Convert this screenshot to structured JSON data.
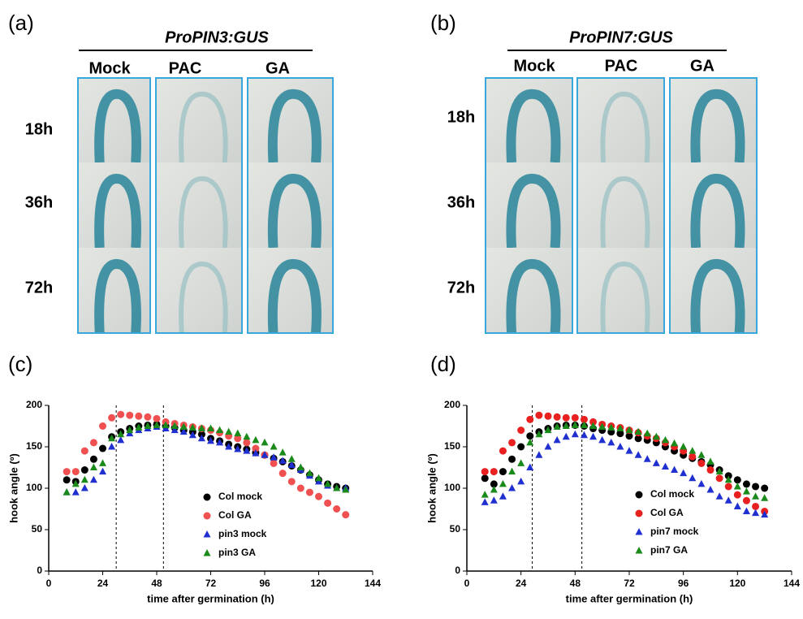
{
  "image_panels": [
    {
      "panel_label": "(a)",
      "title": "ProPIN3:GUS",
      "columns": [
        "Mock",
        "PAC",
        "GA"
      ],
      "rows": [
        "18h",
        "36h",
        "72h"
      ]
    },
    {
      "panel_label": "(b)",
      "title": "ProPIN7:GUS",
      "columns": [
        "Mock",
        "PAC",
        "GA"
      ],
      "rows": [
        "18h",
        "36h",
        "72h"
      ]
    }
  ],
  "chart_data": [
    {
      "type": "scatter",
      "panel_label": "(c)",
      "xlabel": "time after germination (h)",
      "ylabel": "hook angle (º)",
      "xlim": [
        0,
        144
      ],
      "ylim": [
        0,
        200
      ],
      "xticks": [
        0,
        24,
        48,
        72,
        96,
        120,
        144
      ],
      "yticks": [
        0,
        50,
        100,
        150,
        200
      ],
      "vlines": [
        30,
        51
      ],
      "x": [
        8,
        12,
        16,
        20,
        24,
        28,
        32,
        36,
        40,
        44,
        48,
        52,
        56,
        60,
        64,
        68,
        72,
        76,
        80,
        84,
        88,
        92,
        96,
        100,
        104,
        108,
        112,
        116,
        120,
        124,
        128,
        132
      ],
      "series": [
        {
          "name": "Col mock",
          "color": "#000000",
          "marker": "circle",
          "values": [
            110,
            108,
            122,
            135,
            148,
            162,
            168,
            172,
            175,
            176,
            177,
            175,
            173,
            170,
            168,
            165,
            160,
            157,
            153,
            150,
            147,
            143,
            140,
            136,
            132,
            127,
            122,
            116,
            110,
            105,
            102,
            100
          ]
        },
        {
          "name": "Col GA",
          "color": "#f05050",
          "marker": "circle",
          "values": [
            120,
            120,
            145,
            155,
            175,
            185,
            189,
            188,
            187,
            186,
            184,
            180,
            178,
            176,
            174,
            172,
            170,
            167,
            163,
            160,
            155,
            148,
            140,
            130,
            118,
            108,
            100,
            95,
            90,
            82,
            75,
            68
          ]
        },
        {
          "name": "pin3 mock",
          "color": "#2030d0",
          "marker": "triangle",
          "values": [
            95,
            95,
            100,
            110,
            120,
            150,
            158,
            166,
            170,
            172,
            174,
            172,
            170,
            168,
            164,
            160,
            157,
            155,
            150,
            147,
            145,
            142,
            140,
            137,
            133,
            128,
            122,
            115,
            108,
            103,
            100,
            100
          ]
        },
        {
          "name": "pin3 GA",
          "color": "#1a8a1a",
          "marker": "triangle",
          "values": [
            95,
            105,
            110,
            125,
            130,
            160,
            165,
            170,
            173,
            175,
            176,
            176,
            175,
            174,
            173,
            172,
            172,
            170,
            168,
            166,
            162,
            158,
            155,
            150,
            143,
            135,
            125,
            118,
            112,
            105,
            100,
            98
          ]
        }
      ]
    },
    {
      "type": "scatter",
      "panel_label": "(d)",
      "xlabel": "time after germination (h)",
      "ylabel": "hook angle (º)",
      "xlim": [
        0,
        144
      ],
      "ylim": [
        0,
        200
      ],
      "xticks": [
        0,
        24,
        48,
        72,
        96,
        120,
        144
      ],
      "yticks": [
        0,
        50,
        100,
        150,
        200
      ],
      "vlines": [
        29,
        51
      ],
      "x": [
        8,
        12,
        16,
        20,
        24,
        28,
        32,
        36,
        40,
        44,
        48,
        52,
        56,
        60,
        64,
        68,
        72,
        76,
        80,
        84,
        88,
        92,
        96,
        100,
        104,
        108,
        112,
        116,
        120,
        124,
        128,
        132
      ],
      "series": [
        {
          "name": "Col mock",
          "color": "#000000",
          "marker": "circle",
          "values": [
            112,
            105,
            120,
            135,
            150,
            163,
            168,
            172,
            175,
            176,
            176,
            175,
            172,
            170,
            168,
            166,
            163,
            160,
            158,
            155,
            150,
            145,
            140,
            136,
            132,
            128,
            122,
            115,
            110,
            105,
            102,
            100
          ]
        },
        {
          "name": "Col GA",
          "color": "#e82020",
          "marker": "circle",
          "values": [
            120,
            120,
            145,
            155,
            170,
            183,
            188,
            187,
            186,
            185,
            185,
            183,
            180,
            177,
            175,
            173,
            170,
            167,
            163,
            160,
            155,
            150,
            145,
            138,
            130,
            122,
            112,
            102,
            92,
            85,
            78,
            72
          ]
        },
        {
          "name": "pin7 mock",
          "color": "#2030d0",
          "marker": "triangle",
          "values": [
            83,
            85,
            90,
            100,
            108,
            125,
            140,
            150,
            158,
            162,
            165,
            164,
            162,
            158,
            155,
            150,
            145,
            140,
            135,
            130,
            126,
            122,
            118,
            112,
            105,
            98,
            90,
            85,
            78,
            72,
            70,
            68
          ]
        },
        {
          "name": "pin7 GA",
          "color": "#1a8a1a",
          "marker": "triangle",
          "values": [
            92,
            98,
            105,
            120,
            130,
            155,
            165,
            170,
            174,
            175,
            176,
            176,
            175,
            174,
            173,
            172,
            170,
            168,
            166,
            162,
            158,
            154,
            150,
            145,
            140,
            132,
            120,
            110,
            102,
            96,
            90,
            88
          ]
        }
      ]
    }
  ]
}
